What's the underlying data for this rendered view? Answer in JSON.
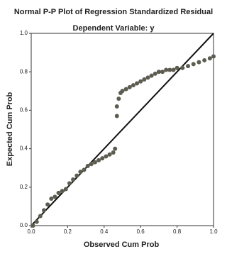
{
  "chart_data": {
    "type": "scatter",
    "title": "Normal P-P Plot of Regression Standardized Residual",
    "subtitle": "Dependent Variable: y",
    "x_label": "Observed Cum Prob",
    "y_label": "Expected Cum Prob",
    "x": [
      0.01,
      0.03,
      0.05,
      0.07,
      0.09,
      0.11,
      0.13,
      0.15,
      0.17,
      0.19,
      0.21,
      0.23,
      0.25,
      0.27,
      0.29,
      0.31,
      0.33,
      0.35,
      0.37,
      0.39,
      0.41,
      0.43,
      0.45,
      0.46,
      0.47,
      0.47,
      0.48,
      0.49,
      0.5,
      0.52,
      0.54,
      0.56,
      0.58,
      0.6,
      0.62,
      0.64,
      0.66,
      0.68,
      0.7,
      0.72,
      0.74,
      0.76,
      0.78,
      0.8,
      0.83,
      0.86,
      0.89,
      0.92,
      0.95,
      0.98,
      1.0
    ],
    "y": [
      0.0,
      0.02,
      0.05,
      0.08,
      0.11,
      0.14,
      0.15,
      0.17,
      0.18,
      0.19,
      0.22,
      0.24,
      0.26,
      0.28,
      0.29,
      0.31,
      0.32,
      0.33,
      0.34,
      0.35,
      0.36,
      0.37,
      0.38,
      0.4,
      0.57,
      0.62,
      0.66,
      0.69,
      0.7,
      0.71,
      0.72,
      0.73,
      0.74,
      0.75,
      0.76,
      0.77,
      0.78,
      0.79,
      0.8,
      0.8,
      0.81,
      0.81,
      0.81,
      0.82,
      0.82,
      0.83,
      0.84,
      0.85,
      0.86,
      0.87,
      0.88
    ],
    "color": "#5c5c50",
    "line_color": "#111111",
    "xlim": [
      0,
      1
    ],
    "ylim": [
      0,
      1
    ],
    "xticks": [
      {
        "value": 0,
        "label": "0.0"
      },
      {
        "value": 0.2,
        "label": "0.2"
      },
      {
        "value": 0.4,
        "label": "0.4"
      },
      {
        "value": 0.6,
        "label": "0.6"
      },
      {
        "value": 0.8,
        "label": "0.8"
      },
      {
        "value": 1,
        "label": "1.0"
      }
    ],
    "yticks": [
      {
        "value": 0,
        "label": "0.0"
      },
      {
        "value": 0.2,
        "label": "0.2"
      },
      {
        "value": 0.4,
        "label": "0.4"
      },
      {
        "value": 0.6,
        "label": "0.6"
      },
      {
        "value": 0.8,
        "label": "0.8"
      },
      {
        "value": 1,
        "label": "1.0"
      }
    ]
  }
}
